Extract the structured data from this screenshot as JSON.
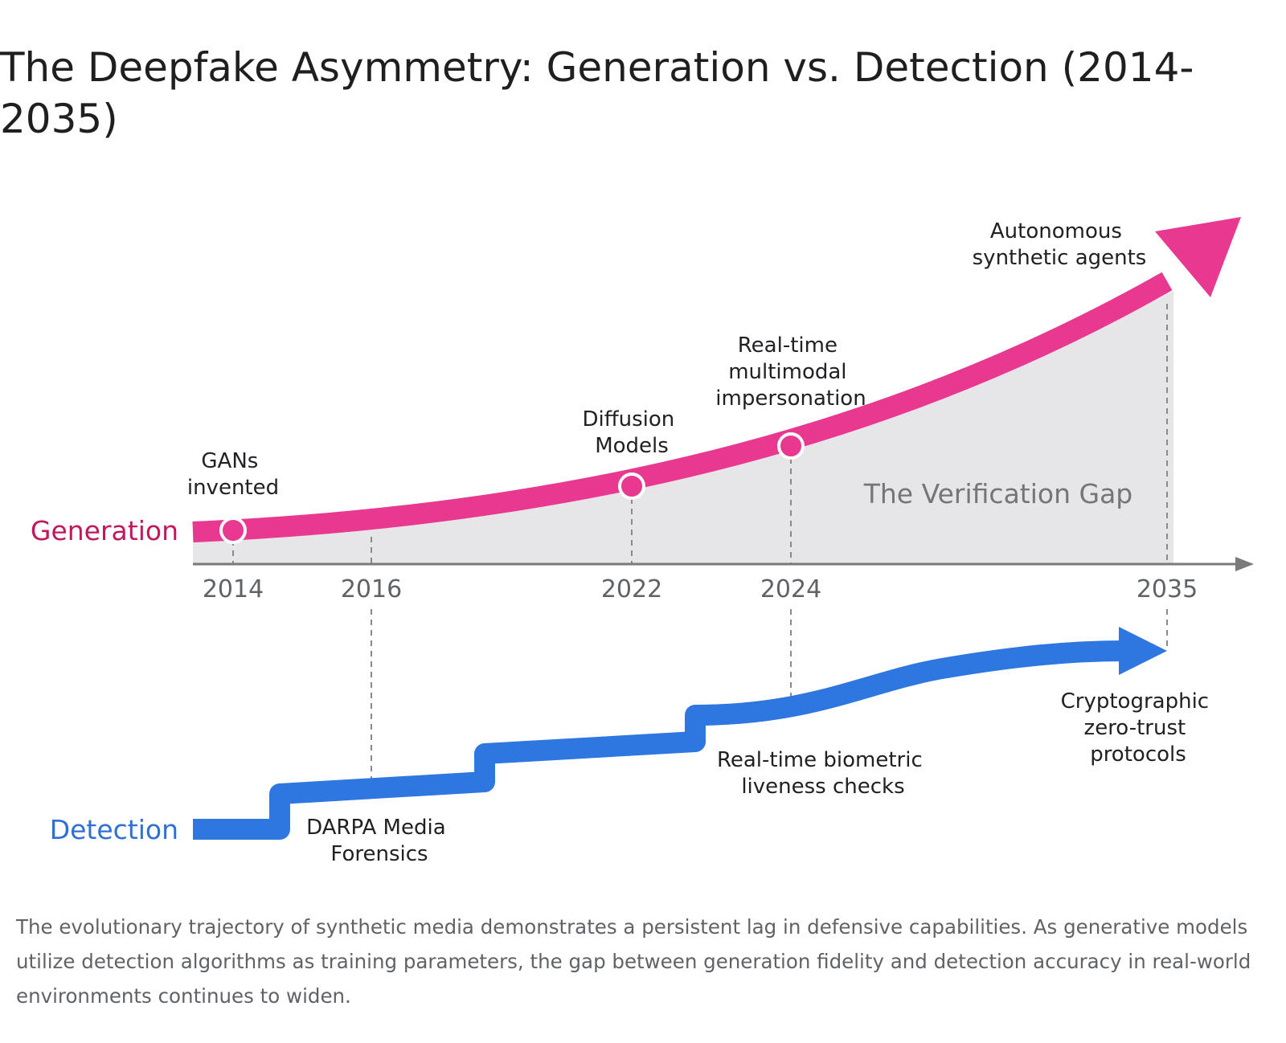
{
  "title": "The Deepfake Asymmetry: Generation vs. Detection (2014-2035)",
  "colors": {
    "generation": "#e8388f",
    "generation_label": "#c2185b",
    "detection": "#2f77e0",
    "detection_label": "#2f6fd6",
    "gap_fill": "#e6e6e8",
    "axis": "#7a7a7a"
  },
  "lanes": {
    "generation": "Generation",
    "detection": "Detection"
  },
  "axis": {
    "years": [
      "2014",
      "2016",
      "2022",
      "2024",
      "2035"
    ]
  },
  "gap_label": "The Verification Gap",
  "generation_milestones": [
    {
      "year": "2014",
      "lines": [
        "GANs",
        "invented"
      ]
    },
    {
      "year": "2022",
      "lines": [
        "Diffusion",
        "Models"
      ]
    },
    {
      "year": "2024",
      "lines": [
        "Real-time",
        "multimodal",
        "impersonation"
      ]
    },
    {
      "year": "2035",
      "lines": [
        "Autonomous",
        "synthetic agents"
      ]
    }
  ],
  "detection_milestones": [
    {
      "year": "2016",
      "lines": [
        "DARPA Media",
        "Forensics"
      ]
    },
    {
      "year": "2024",
      "lines": [
        "Real-time biometric",
        "liveness checks"
      ]
    },
    {
      "year": "2035",
      "lines": [
        "Cryptographic",
        "zero-trust",
        "protocols"
      ]
    }
  ],
  "caption": "The evolutionary trajectory of synthetic media demonstrates a persistent lag in defensive capabilities. As generative models utilize detection algorithms as training parameters, the gap between generation fidelity and detection accuracy in real-world environments continues to widen."
}
